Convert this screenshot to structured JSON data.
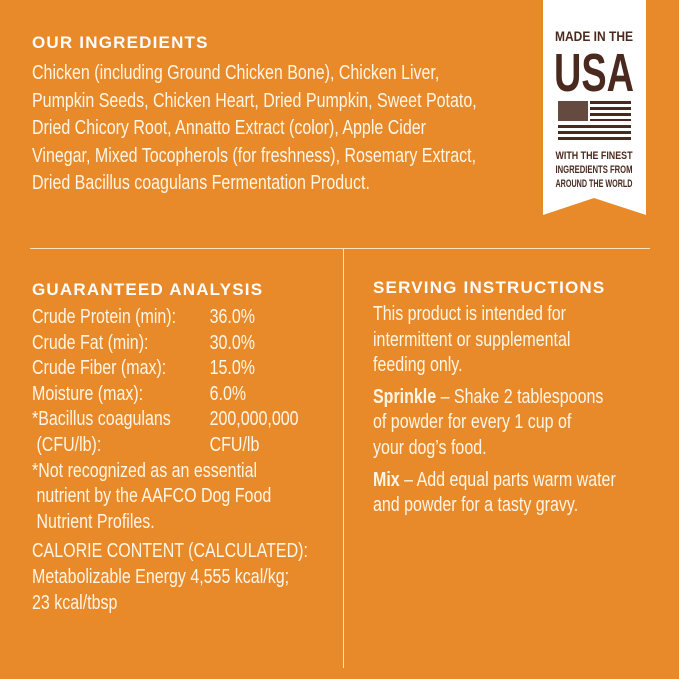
{
  "ingredients": {
    "title": "OUR INGREDIENTS",
    "lines": [
      "Chicken (including Ground Chicken Bone), Chicken Liver,",
      "Pumpkin Seeds, Chicken Heart, Dried Pumpkin, Sweet Potato,",
      "Dried Chicory Root, Annatto Extract (color), Apple Cider",
      "Vinegar, Mixed Tocopherols (for freshness), Rosemary Extract,",
      "Dried Bacillus coagulans Fermentation Product."
    ]
  },
  "badge": {
    "line1": "MADE IN THE",
    "line2": "USA",
    "line3": "WITH THE FINEST",
    "line4": "INGREDIENTS FROM",
    "line5": "AROUND THE WORLD",
    "color": "#4A2A1E"
  },
  "analysis": {
    "title": "GUARANTEED ANALYSIS",
    "rows": [
      {
        "label": "Crude Protein (min):",
        "value": "36.0%"
      },
      {
        "label": "Crude Fat (min):",
        "value": "30.0%"
      },
      {
        "label": "Crude Fiber (max):",
        "value": "15.0%"
      },
      {
        "label": "Moisture (max):",
        "value": "6.0%"
      },
      {
        "label": "*Bacillus coagulans",
        "value": "200,000,000"
      },
      {
        "label": " (CFU/lb):",
        "value": "CFU/lb"
      }
    ],
    "notes": [
      "*Not recognized as an essential",
      " nutrient by the AAFCO Dog Food",
      " Nutrient Profiles.",
      "CALORIE CONTENT (CALCULATED):",
      "Metabolizable Energy 4,555 kcal/kg;",
      "23 kcal/tbsp"
    ]
  },
  "serving": {
    "title": "SERVING INSTRUCTIONS",
    "intro": [
      "This product is intended for",
      "intermittent or supplemental",
      "feeding only."
    ],
    "sprinkle_label": "Sprinkle",
    "sprinkle": [
      " – Shake 2 tablespoons",
      "of powder for every 1 cup of",
      "your dog’s food."
    ],
    "mix_label": "Mix",
    "mix": [
      " – Add equal parts warm water",
      "and powder for a tasty gravy."
    ]
  },
  "colors": {
    "background": "#E8892A",
    "text": "#FFF6E6"
  }
}
